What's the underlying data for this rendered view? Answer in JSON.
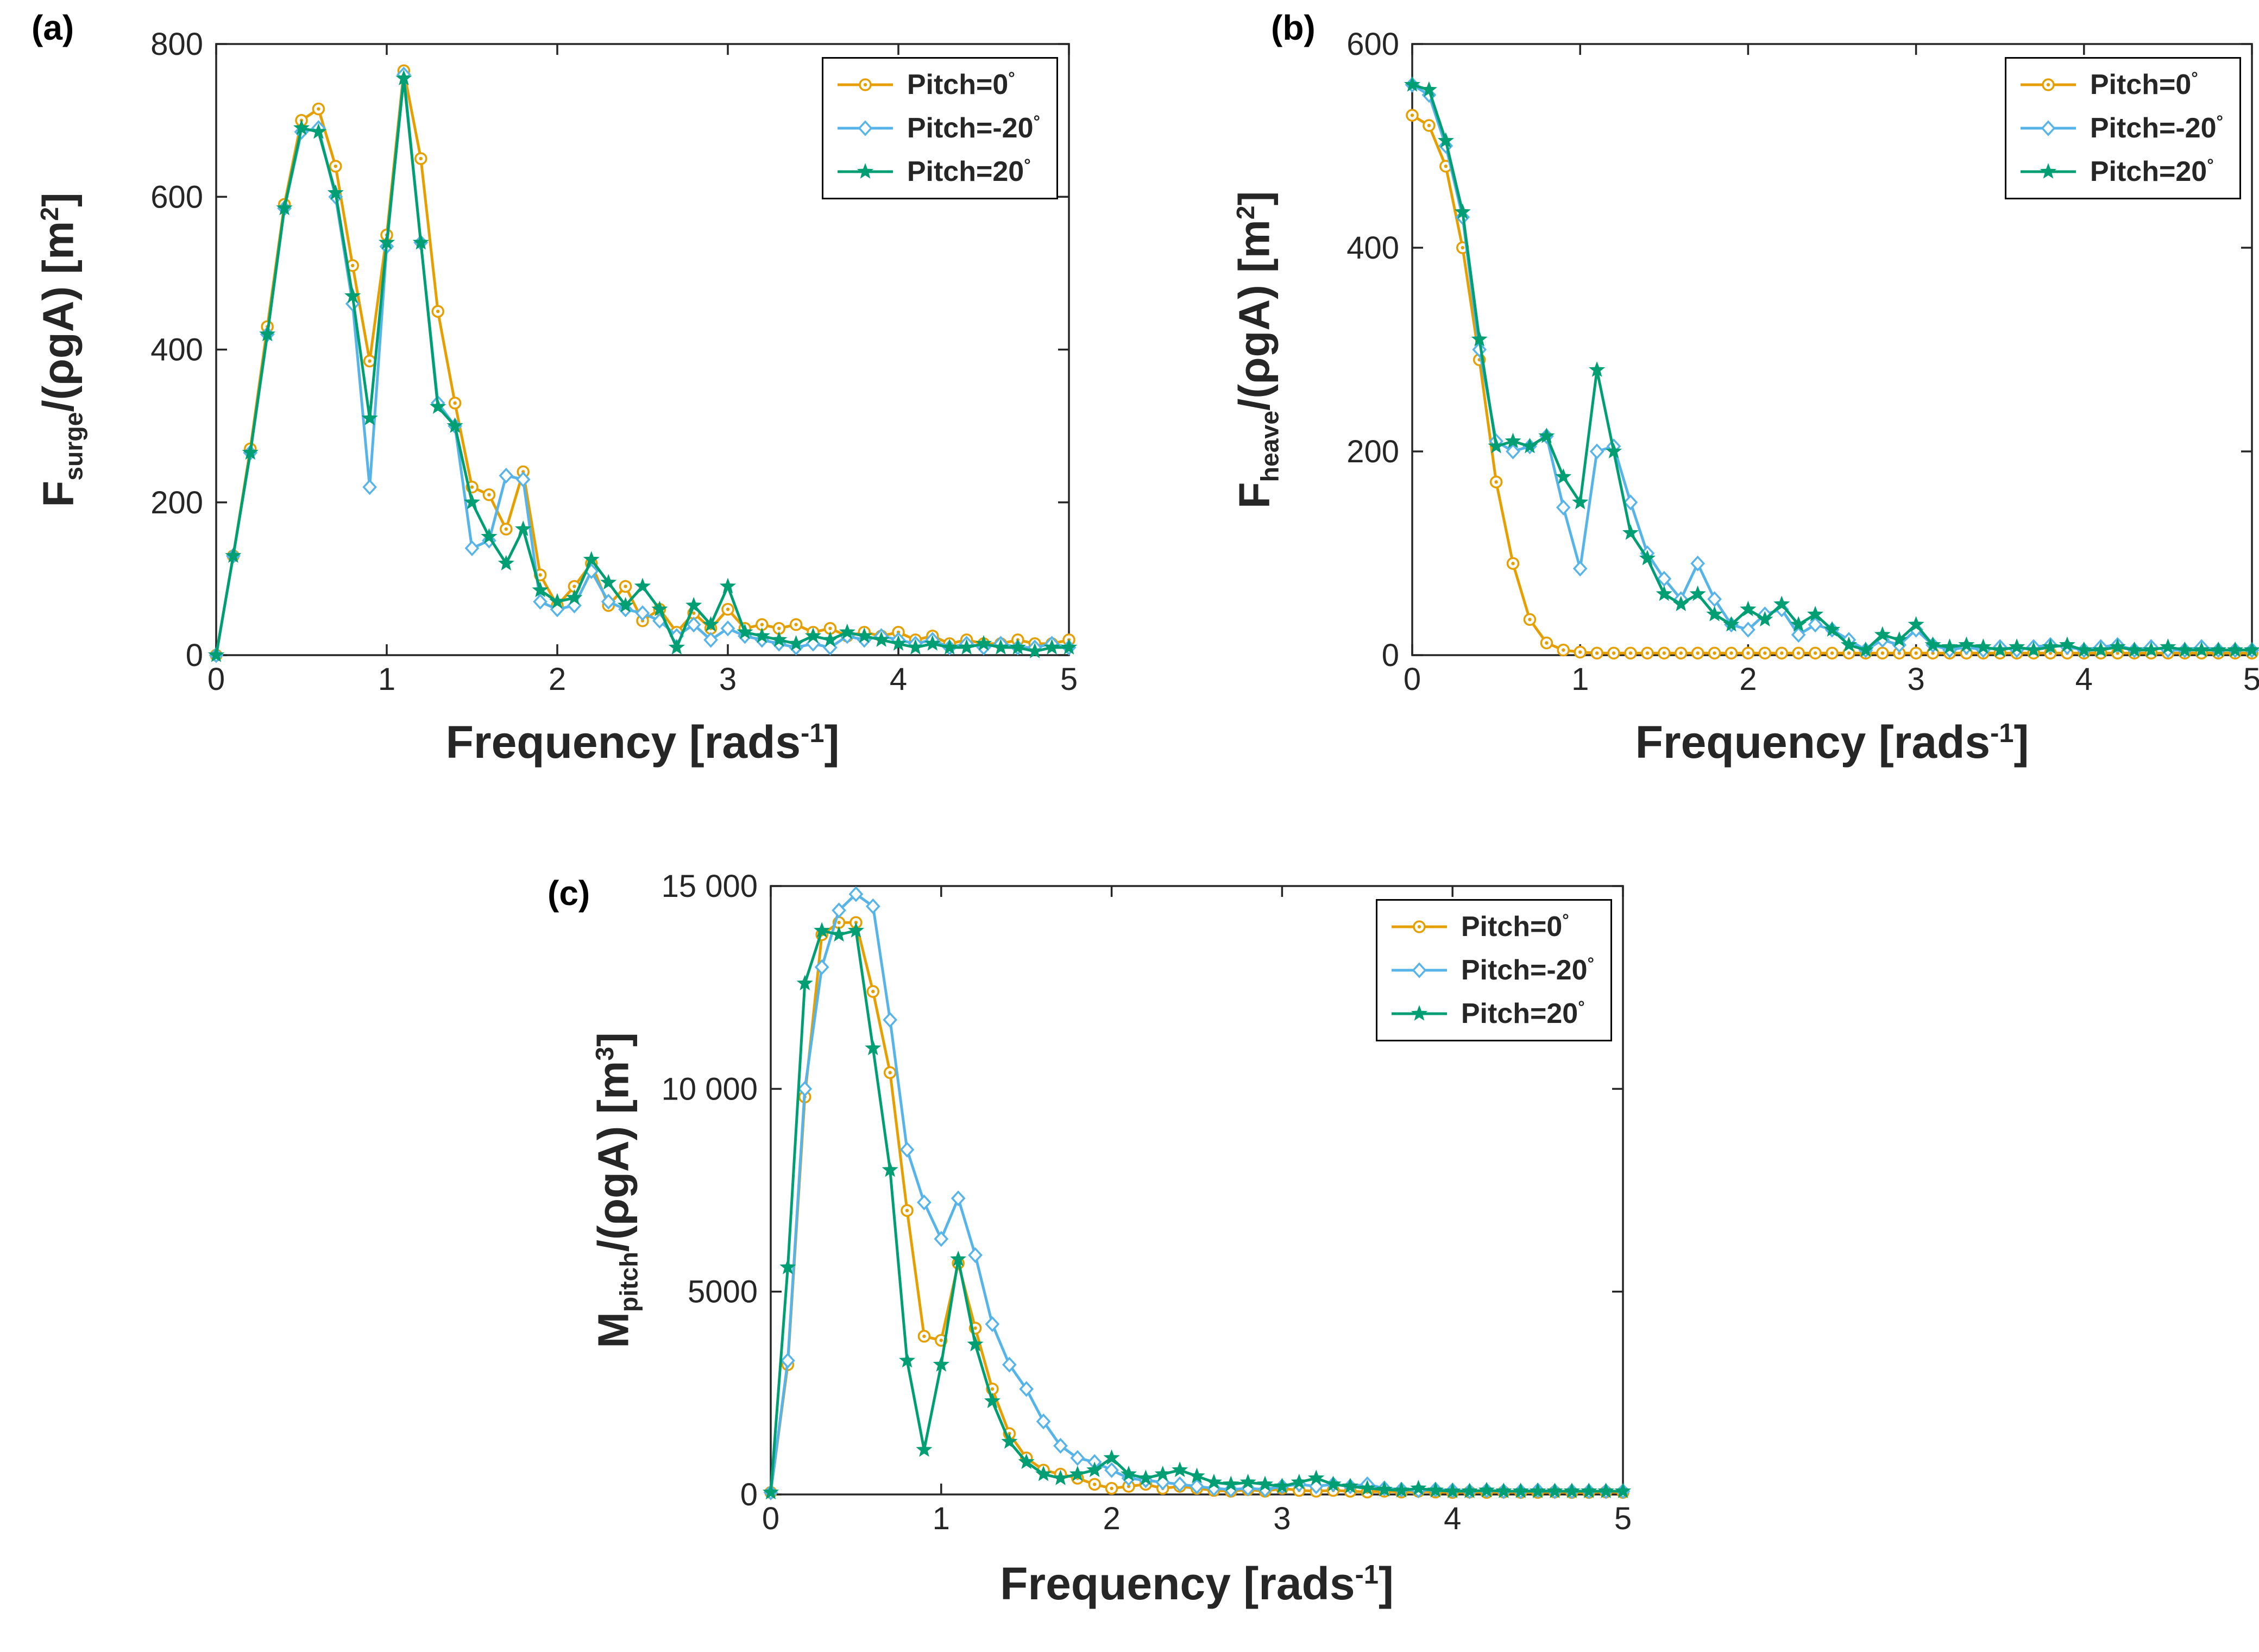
{
  "figure": {
    "background": "#ffffff",
    "axis_color": "#262626",
    "legend_border_color": "#000000"
  },
  "chart_data": [
    {
      "id": "a",
      "type": "line",
      "panel_label": "(a)",
      "xlabel": {
        "base": "Frequency [rads",
        "sup": "-1",
        "end": "]"
      },
      "ylabel": {
        "prefix": "F",
        "sub": "surge",
        "mid": "/(ρgA) [m",
        "sup": "2",
        "end": "]"
      },
      "xlim": [
        0,
        5
      ],
      "ylim": [
        0,
        800
      ],
      "xticks": [
        0,
        1,
        2,
        3,
        4,
        5
      ],
      "xtick_labels": [
        "0",
        "1",
        "2",
        "3",
        "4",
        "5"
      ],
      "yticks": [
        0,
        200,
        400,
        600,
        800
      ],
      "ytick_labels": [
        "0",
        "200",
        "400",
        "600",
        "800"
      ],
      "legend_position": "top-right",
      "x": [
        0,
        0.1,
        0.2,
        0.3,
        0.4,
        0.5,
        0.6,
        0.7,
        0.8,
        0.9,
        1.0,
        1.1,
        1.2,
        1.3,
        1.4,
        1.5,
        1.6,
        1.7,
        1.8,
        1.9,
        2.0,
        2.1,
        2.2,
        2.3,
        2.4,
        2.5,
        2.6,
        2.7,
        2.8,
        2.9,
        3.0,
        3.1,
        3.2,
        3.3,
        3.4,
        3.5,
        3.6,
        3.7,
        3.8,
        3.9,
        4.0,
        4.1,
        4.2,
        4.3,
        4.4,
        4.5,
        4.6,
        4.7,
        4.8,
        4.9,
        5.0
      ],
      "series": [
        {
          "name": "Pitch=0",
          "deg": "°",
          "color": "#E69F00",
          "marker": "circle",
          "values": [
            0,
            130,
            270,
            430,
            590,
            700,
            715,
            640,
            510,
            385,
            550,
            765,
            650,
            450,
            330,
            220,
            210,
            165,
            240,
            105,
            65,
            90,
            120,
            65,
            90,
            45,
            60,
            30,
            55,
            35,
            60,
            35,
            40,
            35,
            40,
            30,
            35,
            25,
            30,
            25,
            30,
            20,
            25,
            15,
            20,
            15,
            15,
            20,
            15,
            15,
            20
          ]
        },
        {
          "name": "Pitch=-20",
          "deg": "°",
          "color": "#56B4E9",
          "marker": "diamond",
          "values": [
            0,
            130,
            265,
            420,
            585,
            685,
            690,
            600,
            460,
            220,
            535,
            760,
            540,
            330,
            300,
            140,
            150,
            235,
            230,
            70,
            60,
            65,
            110,
            70,
            60,
            55,
            45,
            25,
            40,
            20,
            35,
            25,
            20,
            15,
            10,
            15,
            10,
            25,
            20,
            25,
            20,
            15,
            20,
            10,
            15,
            10,
            15,
            10,
            10,
            15,
            10
          ]
        },
        {
          "name": "Pitch=20",
          "deg": "°",
          "color": "#009E73",
          "marker": "star",
          "values": [
            0,
            130,
            265,
            420,
            585,
            690,
            685,
            605,
            470,
            310,
            540,
            755,
            540,
            325,
            300,
            200,
            155,
            120,
            165,
            85,
            70,
            75,
            125,
            95,
            65,
            90,
            60,
            10,
            65,
            40,
            90,
            30,
            25,
            20,
            15,
            25,
            20,
            30,
            25,
            20,
            15,
            10,
            15,
            10,
            10,
            15,
            10,
            10,
            5,
            10,
            10
          ]
        }
      ]
    },
    {
      "id": "b",
      "type": "line",
      "panel_label": "(b)",
      "xlabel": {
        "base": "Frequency [rads",
        "sup": "-1",
        "end": "]"
      },
      "ylabel": {
        "prefix": "F",
        "sub": "heave",
        "mid": "/(ρgA) [m",
        "sup": "2",
        "end": "]"
      },
      "xlim": [
        0,
        5
      ],
      "ylim": [
        0,
        600
      ],
      "xticks": [
        0,
        1,
        2,
        3,
        4,
        5
      ],
      "xtick_labels": [
        "0",
        "1",
        "2",
        "3",
        "4",
        "5"
      ],
      "yticks": [
        0,
        200,
        400,
        600
      ],
      "ytick_labels": [
        "0",
        "200",
        "400",
        "600"
      ],
      "legend_position": "top-right",
      "x": [
        0,
        0.1,
        0.2,
        0.3,
        0.4,
        0.5,
        0.6,
        0.7,
        0.8,
        0.9,
        1.0,
        1.1,
        1.2,
        1.3,
        1.4,
        1.5,
        1.6,
        1.7,
        1.8,
        1.9,
        2.0,
        2.1,
        2.2,
        2.3,
        2.4,
        2.5,
        2.6,
        2.7,
        2.8,
        2.9,
        3.0,
        3.1,
        3.2,
        3.3,
        3.4,
        3.5,
        3.6,
        3.7,
        3.8,
        3.9,
        4.0,
        4.1,
        4.2,
        4.3,
        4.4,
        4.5,
        4.6,
        4.7,
        4.8,
        4.9,
        5.0
      ],
      "series": [
        {
          "name": "Pitch=0",
          "deg": "°",
          "color": "#E69F00",
          "marker": "circle",
          "values": [
            530,
            520,
            480,
            400,
            290,
            170,
            90,
            35,
            12,
            5,
            3,
            2,
            2,
            2,
            2,
            2,
            2,
            2,
            2,
            2,
            2,
            2,
            2,
            2,
            2,
            2,
            2,
            2,
            2,
            2,
            2,
            2,
            2,
            2,
            2,
            2,
            2,
            2,
            2,
            2,
            2,
            2,
            2,
            2,
            2,
            2,
            2,
            2,
            2,
            2,
            2
          ]
        },
        {
          "name": "Pitch=-20",
          "deg": "°",
          "color": "#56B4E9",
          "marker": "diamond",
          "values": [
            560,
            550,
            500,
            430,
            300,
            210,
            200,
            205,
            215,
            145,
            85,
            200,
            205,
            150,
            100,
            75,
            55,
            90,
            55,
            30,
            25,
            40,
            45,
            20,
            30,
            25,
            15,
            5,
            15,
            10,
            25,
            10,
            5,
            8,
            5,
            8,
            5,
            8,
            10,
            8,
            5,
            8,
            10,
            5,
            8,
            5,
            5,
            8,
            5,
            5,
            5
          ]
        },
        {
          "name": "Pitch=20",
          "deg": "°",
          "color": "#009E73",
          "marker": "star",
          "values": [
            560,
            555,
            505,
            435,
            310,
            205,
            210,
            205,
            215,
            175,
            150,
            280,
            200,
            120,
            95,
            60,
            50,
            60,
            40,
            30,
            45,
            35,
            50,
            30,
            40,
            25,
            10,
            5,
            20,
            15,
            30,
            10,
            8,
            10,
            8,
            5,
            8,
            5,
            8,
            10,
            5,
            5,
            8,
            5,
            5,
            8,
            5,
            5,
            5,
            5,
            5
          ]
        }
      ]
    },
    {
      "id": "c",
      "type": "line",
      "panel_label": "(c)",
      "xlabel": {
        "base": "Frequency [rads",
        "sup": "-1",
        "end": "]"
      },
      "ylabel": {
        "prefix": "M",
        "sub": "pitch",
        "mid": "/(ρgA) [m",
        "sup": "3",
        "end": "]"
      },
      "xlim": [
        0,
        5
      ],
      "ylim": [
        0,
        15000
      ],
      "xticks": [
        0,
        1,
        2,
        3,
        4,
        5
      ],
      "xtick_labels": [
        "0",
        "1",
        "2",
        "3",
        "4",
        "5"
      ],
      "yticks": [
        0,
        5000,
        10000,
        15000
      ],
      "ytick_labels": [
        "0",
        "5000",
        "10 000",
        "15 000"
      ],
      "legend_position": "top-right",
      "x": [
        0,
        0.1,
        0.2,
        0.3,
        0.4,
        0.5,
        0.6,
        0.7,
        0.8,
        0.9,
        1.0,
        1.1,
        1.2,
        1.3,
        1.4,
        1.5,
        1.6,
        1.7,
        1.8,
        1.9,
        2.0,
        2.1,
        2.2,
        2.3,
        2.4,
        2.5,
        2.6,
        2.7,
        2.8,
        2.9,
        3.0,
        3.1,
        3.2,
        3.3,
        3.4,
        3.5,
        3.6,
        3.7,
        3.8,
        3.9,
        4.0,
        4.1,
        4.2,
        4.3,
        4.4,
        4.5,
        4.6,
        4.7,
        4.8,
        4.9,
        5.0
      ],
      "series": [
        {
          "name": "Pitch=0",
          "deg": "°",
          "color": "#E69F00",
          "marker": "circle",
          "values": [
            50,
            3200,
            9800,
            13800,
            14100,
            14100,
            12400,
            10400,
            7000,
            3900,
            3800,
            5700,
            4100,
            2600,
            1500,
            900,
            600,
            500,
            400,
            250,
            150,
            200,
            250,
            150,
            200,
            150,
            100,
            80,
            120,
            80,
            150,
            100,
            80,
            100,
            80,
            60,
            80,
            60,
            80,
            60,
            50,
            60,
            50,
            60,
            50,
            50,
            60,
            50,
            50,
            60,
            50
          ]
        },
        {
          "name": "Pitch=-20",
          "deg": "°",
          "color": "#56B4E9",
          "marker": "diamond",
          "values": [
            50,
            3300,
            10000,
            13000,
            14400,
            14800,
            14500,
            11700,
            8500,
            7200,
            6300,
            7300,
            5900,
            4200,
            3200,
            2600,
            1800,
            1200,
            900,
            800,
            600,
            400,
            350,
            300,
            250,
            200,
            150,
            120,
            150,
            120,
            200,
            250,
            200,
            250,
            200,
            250,
            150,
            120,
            100,
            120,
            100,
            80,
            100,
            80,
            80,
            100,
            80,
            80,
            80,
            80,
            80
          ]
        },
        {
          "name": "Pitch=20",
          "deg": "°",
          "color": "#009E73",
          "marker": "star",
          "values": [
            50,
            5600,
            12600,
            13900,
            13800,
            13900,
            11000,
            8000,
            3300,
            1100,
            3200,
            5800,
            3700,
            2300,
            1300,
            800,
            500,
            400,
            500,
            600,
            900,
            500,
            400,
            500,
            600,
            450,
            300,
            250,
            300,
            250,
            200,
            300,
            400,
            250,
            200,
            150,
            120,
            100,
            150,
            100,
            80,
            80,
            100,
            80,
            80,
            80,
            80,
            80,
            80,
            80,
            80
          ]
        }
      ]
    }
  ]
}
